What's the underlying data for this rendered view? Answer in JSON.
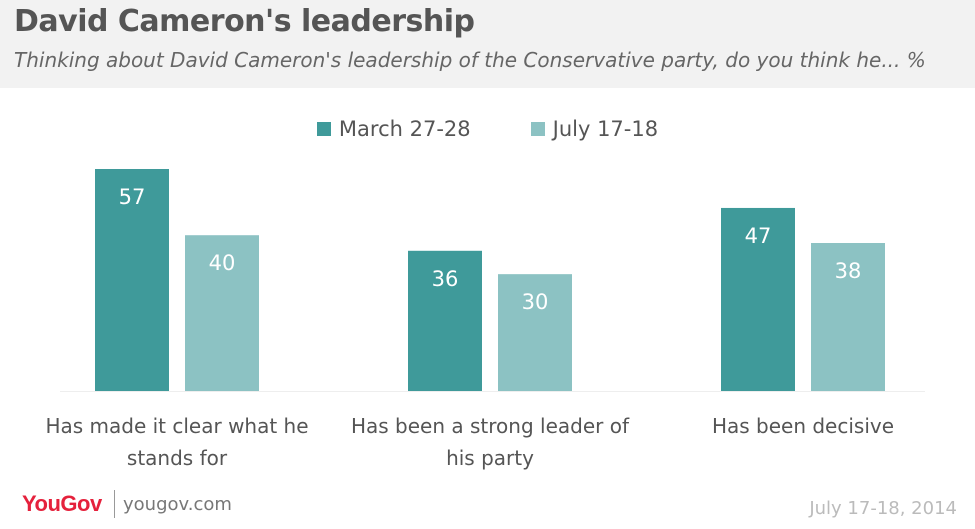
{
  "header": {
    "title": "David Cameron's leadership",
    "subtitle": "Thinking about David Cameron's leadership of the Conservative party, do you think he... %"
  },
  "footer": {
    "logo": "YouGov",
    "site": "yougov.com",
    "date": "July 17-18, 2014"
  },
  "colors": {
    "series_1": "#3f9a9a",
    "series_2": "#8cc2c3",
    "header_bg": "#f2f2f2"
  },
  "chart_data": {
    "type": "bar",
    "categories": [
      [
        "Has made it clear what he",
        "stands for"
      ],
      [
        "Has been a strong leader of",
        "his party"
      ],
      [
        "Has been decisive"
      ]
    ],
    "series": [
      {
        "name": "March 27-28",
        "values": [
          57,
          36,
          47
        ]
      },
      {
        "name": "July 17-18",
        "values": [
          40,
          30,
          38
        ]
      }
    ],
    "ylim": [
      0,
      60
    ],
    "grid": false,
    "legend": "top-center",
    "data_labels": "inside-top"
  }
}
